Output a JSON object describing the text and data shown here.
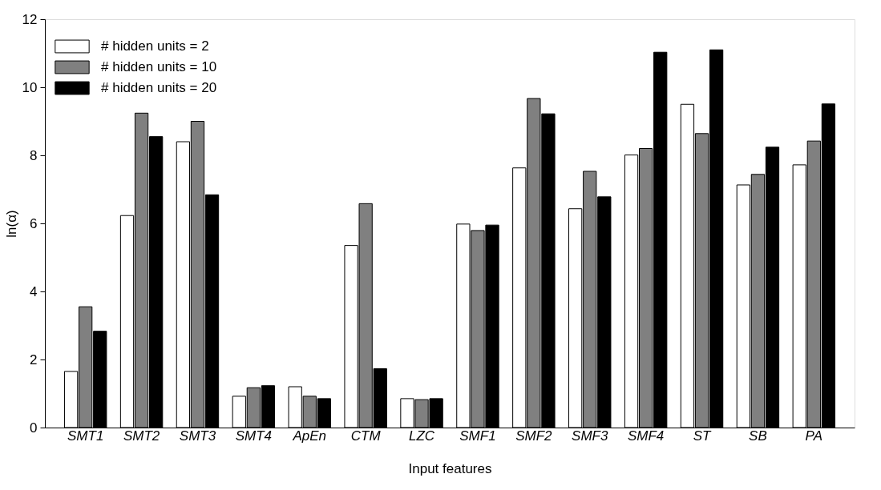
{
  "chart_data": {
    "type": "bar",
    "xlabel": "Input features",
    "ylabel": "ln(α)",
    "categories": [
      "SMT1",
      "SMT2",
      "SMT3",
      "SMT4",
      "ApEn",
      "CTM",
      "LZC",
      "SMF1",
      "SMF2",
      "SMF3",
      "SMF4",
      "ST",
      "SB",
      "PA"
    ],
    "series": [
      {
        "name": "# hidden units = 2",
        "color": "#ffffff",
        "values": [
          1.65,
          6.23,
          8.4,
          0.92,
          1.2,
          5.35,
          0.85,
          5.98,
          7.63,
          6.43,
          8.01,
          9.5,
          7.13,
          7.72
        ]
      },
      {
        "name": "# hidden units = 10",
        "color": "#808080",
        "values": [
          3.55,
          9.24,
          9.0,
          1.17,
          0.92,
          6.58,
          0.82,
          5.79,
          9.67,
          7.53,
          8.2,
          8.64,
          7.44,
          8.42
        ]
      },
      {
        "name": "# hidden units = 20",
        "color": "#000000",
        "values": [
          2.83,
          8.55,
          6.84,
          1.23,
          0.85,
          1.73,
          0.85,
          5.95,
          9.22,
          6.78,
          11.03,
          11.1,
          8.24,
          9.51
        ]
      }
    ],
    "ylim": [
      0,
      12
    ],
    "yticks": [
      0,
      2,
      4,
      6,
      8,
      10,
      12
    ],
    "grid": false,
    "legend": "top left"
  }
}
